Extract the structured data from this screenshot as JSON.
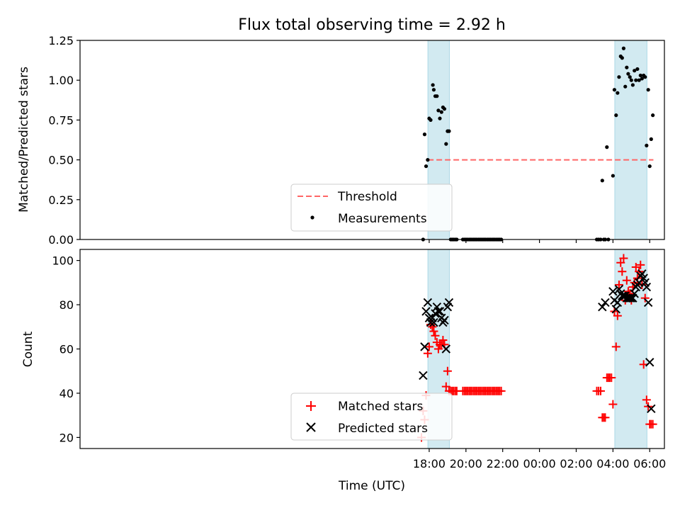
{
  "title": "Flux total observing time = 2.92 h",
  "colors": {
    "shade": "#add8e6",
    "threshold": "#ff6666",
    "matched": "#ff0000",
    "predicted": "#000000",
    "measure": "#000000"
  },
  "chart_data": [
    {
      "type": "scatter",
      "panel": "top",
      "ylabel": "Matched/Predicted stars",
      "xlabel": "",
      "xlim": [
        -1.0,
        30.8
      ],
      "ylim": [
        0,
        1.25
      ],
      "yticks": [
        0.0,
        0.25,
        0.5,
        0.75,
        1.0,
        1.25
      ],
      "ytick_labels": [
        "0.00",
        "0.25",
        "0.50",
        "0.75",
        "1.00",
        "1.25"
      ],
      "shaded_intervals": [
        [
          17.93,
          19.1
        ],
        [
          28.1,
          29.85
        ]
      ],
      "threshold": {
        "name": "Threshold",
        "value": 0.5,
        "x_range": [
          17.93,
          30.2
        ]
      },
      "series": [
        {
          "name": "Measurements",
          "x": [
            17.67,
            17.75,
            17.83,
            17.92,
            18.0,
            18.08,
            18.2,
            18.25,
            18.33,
            18.42,
            18.5,
            18.58,
            18.67,
            18.75,
            18.83,
            18.92,
            19.0,
            19.08,
            19.17,
            19.25,
            19.33,
            19.42,
            19.5,
            19.83,
            19.92,
            20.0,
            20.08,
            20.17,
            20.25,
            20.33,
            20.42,
            20.5,
            20.58,
            20.67,
            20.75,
            20.83,
            20.92,
            21.0,
            21.08,
            21.17,
            21.25,
            21.33,
            21.42,
            21.5,
            21.58,
            21.67,
            21.75,
            21.83,
            21.92,
            27.12,
            27.22,
            27.33,
            27.42,
            27.5,
            27.58,
            27.67,
            27.75,
            28.0,
            28.08,
            28.17,
            28.25,
            28.33,
            28.42,
            28.5,
            28.58,
            28.67,
            28.75,
            28.83,
            28.92,
            29.0,
            29.08,
            29.17,
            29.25,
            29.33,
            29.42,
            29.5,
            29.58,
            29.67,
            29.75,
            29.83,
            29.92,
            30.0,
            30.08,
            30.17
          ],
          "y": [
            0.0,
            0.66,
            0.46,
            0.5,
            0.76,
            0.75,
            0.97,
            0.94,
            0.9,
            0.9,
            0.81,
            0.76,
            0.8,
            0.83,
            0.82,
            0.6,
            0.68,
            0.68,
            0.0,
            0.0,
            0.0,
            0.0,
            0.0,
            0.0,
            0.0,
            0.0,
            0.0,
            0.0,
            0.0,
            0.0,
            0.0,
            0.0,
            0.0,
            0.0,
            0.0,
            0.0,
            0.0,
            0.0,
            0.0,
            0.0,
            0.0,
            0.0,
            0.0,
            0.0,
            0.0,
            0.0,
            0.0,
            0.0,
            0.0,
            0.0,
            0.0,
            0.0,
            0.37,
            0.0,
            0.0,
            0.58,
            0.0,
            0.4,
            0.94,
            0.78,
            0.92,
            1.02,
            1.15,
            1.14,
            1.2,
            0.96,
            1.08,
            1.04,
            1.02,
            1.0,
            0.97,
            1.06,
            1.0,
            1.07,
            1.0,
            1.03,
            1.01,
            1.03,
            1.02,
            0.59,
            0.94,
            0.46,
            0.63,
            0.78
          ]
        }
      ]
    },
    {
      "type": "scatter",
      "panel": "bottom",
      "ylabel": "Count",
      "xlabel": "Time (UTC)",
      "xlim": [
        -1.0,
        30.8
      ],
      "ylim": [
        15,
        105
      ],
      "yticks": [
        20,
        40,
        60,
        80,
        100
      ],
      "ytick_labels": [
        "20",
        "40",
        "60",
        "80",
        "100"
      ],
      "xticks": [
        18,
        20,
        22,
        24,
        26,
        28,
        30
      ],
      "xtick_labels": [
        "18:00",
        "20:00",
        "22:00",
        "00:00",
        "02:00",
        "04:00",
        "06:00"
      ],
      "shaded_intervals": [
        [
          17.93,
          19.1
        ],
        [
          28.1,
          29.85
        ]
      ],
      "series": [
        {
          "name": "Matched stars",
          "marker": "plus",
          "x": [
            17.58,
            17.67,
            17.75,
            17.83,
            17.92,
            18.0,
            18.08,
            18.17,
            18.25,
            18.33,
            18.42,
            18.5,
            18.58,
            18.67,
            18.75,
            18.83,
            18.92,
            19.0,
            19.08,
            19.17,
            19.25,
            19.33,
            19.42,
            19.5,
            19.83,
            19.92,
            20.0,
            20.08,
            20.17,
            20.25,
            20.33,
            20.42,
            20.5,
            20.58,
            20.67,
            20.75,
            20.83,
            20.92,
            21.0,
            21.08,
            21.17,
            21.25,
            21.33,
            21.42,
            21.5,
            21.58,
            21.67,
            21.75,
            21.83,
            21.92,
            27.12,
            27.22,
            27.33,
            27.42,
            27.5,
            27.58,
            27.67,
            27.75,
            27.83,
            27.92,
            28.0,
            28.08,
            28.17,
            28.25,
            28.33,
            28.42,
            28.5,
            28.58,
            28.67,
            28.75,
            28.83,
            28.92,
            29.0,
            29.08,
            29.17,
            29.25,
            29.33,
            29.42,
            29.5,
            29.58,
            29.67,
            29.75,
            29.83,
            29.92,
            30.0,
            30.08,
            30.17
          ],
          "y": [
            20,
            32,
            28,
            39,
            58,
            61,
            71,
            70,
            68,
            66,
            63,
            60,
            62,
            62,
            64,
            62,
            43,
            50,
            41,
            41,
            41,
            41,
            41,
            41,
            41,
            41,
            41,
            41,
            41,
            41,
            41,
            41,
            41,
            41,
            41,
            41,
            41,
            41,
            41,
            41,
            41,
            41,
            41,
            41,
            41,
            41,
            41,
            41,
            41,
            41,
            41,
            41,
            41,
            29,
            29,
            29,
            47,
            47,
            47,
            47,
            35,
            77,
            61,
            75,
            89,
            99,
            95,
            101,
            82,
            91,
            86,
            85,
            82,
            88,
            90,
            97,
            92,
            95,
            98,
            89,
            53,
            83,
            37,
            34,
            26,
            26,
            26
          ]
        },
        {
          "name": "Predicted stars",
          "marker": "x",
          "x": [
            17.67,
            17.75,
            17.83,
            17.92,
            18.0,
            18.08,
            18.17,
            18.25,
            18.33,
            18.42,
            18.5,
            18.58,
            18.67,
            18.75,
            18.83,
            18.92,
            19.0,
            19.08,
            27.42,
            27.58,
            28.0,
            28.08,
            28.17,
            28.25,
            28.33,
            28.42,
            28.5,
            28.58,
            28.67,
            28.75,
            28.83,
            28.92,
            29.0,
            29.08,
            29.17,
            29.25,
            29.33,
            29.42,
            29.5,
            29.58,
            29.67,
            29.75,
            29.83,
            29.92,
            30.0,
            30.08
          ],
          "y": [
            48,
            61,
            77,
            81,
            74,
            72,
            74,
            72,
            76,
            79,
            77,
            77,
            74,
            72,
            73,
            60,
            79,
            81,
            79,
            81,
            86,
            82,
            78,
            81,
            87,
            85,
            84,
            84,
            84,
            83,
            83,
            83,
            83,
            83,
            85,
            88,
            89,
            90,
            93,
            94,
            92,
            90,
            88,
            81,
            54,
            33
          ]
        }
      ]
    }
  ],
  "legend_top": {
    "threshold_label": "Threshold",
    "measure_label": "Measurements"
  },
  "legend_bottom": {
    "matched_label": "Matched stars",
    "predicted_label": "Predicted stars"
  }
}
